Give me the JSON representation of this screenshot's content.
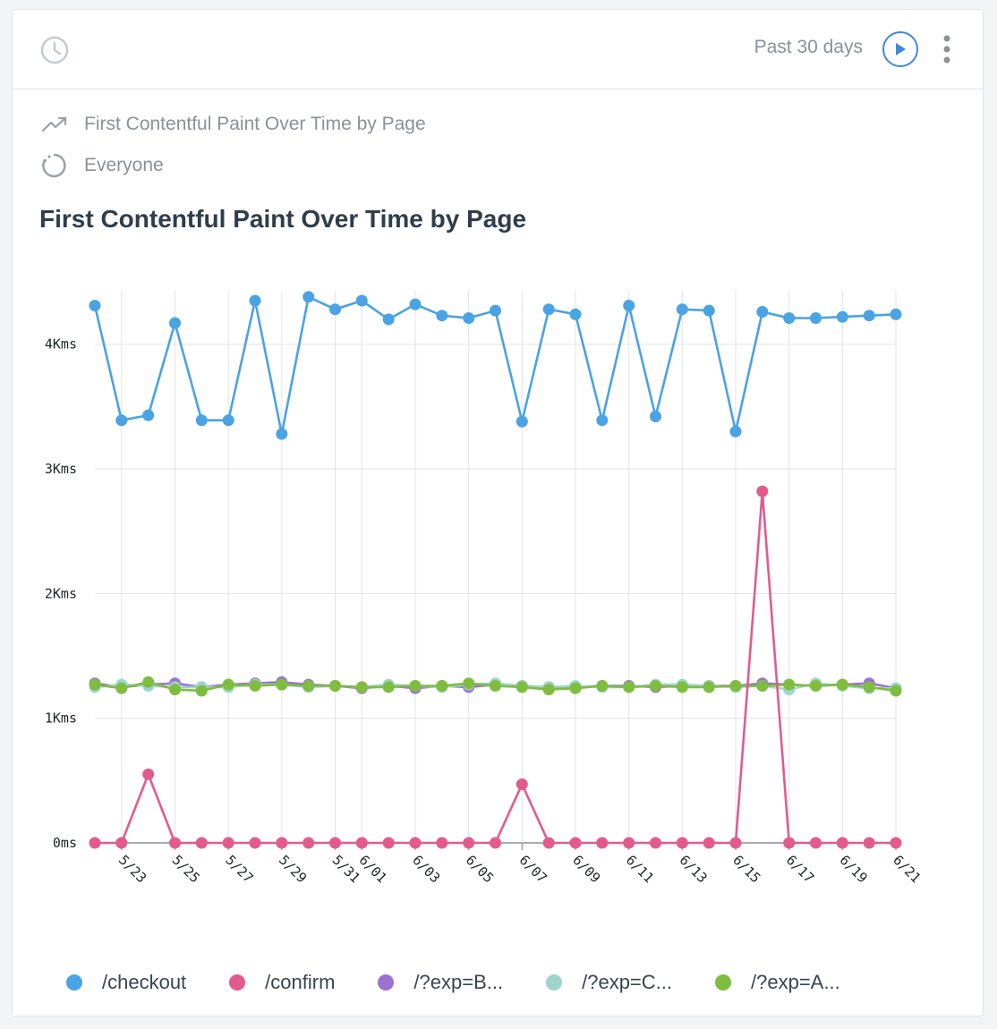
{
  "header": {
    "range_label": "Past 30 days",
    "icons": {
      "clock": "clock-icon",
      "play": "play-icon",
      "menu": "kebab-icon"
    }
  },
  "query": {
    "metric_label": "First Contentful Paint Over Time by Page",
    "metric_icon": "trend-line-icon",
    "segment_label": "Everyone",
    "segment_icon": "dotted-circle-icon"
  },
  "colors": {
    "accent": "#3f88e0",
    "checkout": "#4aa3e3",
    "confirm": "#e35b8e",
    "expB": "#9b72cf",
    "expC": "#9dd5cc",
    "expA": "#7fbd3e"
  },
  "chart_data": {
    "type": "line",
    "title": "First Contentful Paint Over Time by Page",
    "ylim": [
      0,
      4400
    ],
    "y_ticks": [
      0,
      1000,
      2000,
      3000,
      4000
    ],
    "y_tick_labels": [
      "0ms",
      "1Kms",
      "2Kms",
      "3Kms",
      "4Kms"
    ],
    "x": [
      "5/22",
      "5/23",
      "5/24",
      "5/25",
      "5/26",
      "5/27",
      "5/28",
      "5/29",
      "5/30",
      "5/31",
      "6/01",
      "6/02",
      "6/03",
      "6/04",
      "6/05",
      "6/06",
      "6/07",
      "6/08",
      "6/09",
      "6/10",
      "6/11",
      "6/12",
      "6/13",
      "6/14",
      "6/15",
      "6/16",
      "6/17",
      "6/18",
      "6/19",
      "6/20",
      "6/21"
    ],
    "x_tick_labels": [
      "5/23",
      "5/25",
      "5/27",
      "5/29",
      "5/31",
      "6/01",
      "6/03",
      "6/05",
      "6/07",
      "6/09",
      "6/11",
      "6/13",
      "6/15",
      "6/17",
      "6/19",
      "6/21"
    ],
    "grid": true,
    "legend_position": "bottom",
    "series": [
      {
        "name": "/checkout",
        "color": "#4aa3e3",
        "values": [
          4310,
          3390,
          3430,
          4170,
          3390,
          3390,
          4350,
          3280,
          4380,
          4280,
          4350,
          4200,
          4320,
          4230,
          4210,
          4270,
          3380,
          4280,
          4240,
          3390,
          4310,
          3420,
          4280,
          4270,
          3300,
          4260,
          4210,
          4210,
          4220,
          4230,
          4240
        ]
      },
      {
        "name": "/confirm",
        "color": "#e35b8e",
        "values": [
          0,
          0,
          550,
          0,
          0,
          0,
          0,
          0,
          0,
          0,
          0,
          0,
          0,
          0,
          0,
          0,
          470,
          0,
          0,
          0,
          0,
          0,
          0,
          0,
          0,
          2820,
          0,
          0,
          0,
          0,
          0
        ]
      },
      {
        "name": "/?exp=B...",
        "color": "#9b72cf",
        "values": [
          1280,
          1250,
          1270,
          1280,
          1250,
          1270,
          1280,
          1290,
          1270,
          1260,
          1240,
          1260,
          1240,
          1260,
          1250,
          1270,
          1260,
          1250,
          1250,
          1260,
          1260,
          1250,
          1260,
          1260,
          1260,
          1280,
          1270,
          1260,
          1270,
          1280,
          1240
        ]
      },
      {
        "name": "/?exp=C...",
        "color": "#9dd5cc",
        "values": [
          1250,
          1270,
          1260,
          1250,
          1250,
          1250,
          1270,
          1270,
          1250,
          1260,
          1250,
          1270,
          1260,
          1250,
          1270,
          1280,
          1260,
          1250,
          1260,
          1250,
          1250,
          1270,
          1270,
          1260,
          1250,
          1260,
          1230,
          1280,
          1260,
          1240,
          1240
        ]
      },
      {
        "name": "/?exp=A...",
        "color": "#7fbd3e",
        "values": [
          1270,
          1240,
          1290,
          1230,
          1220,
          1270,
          1260,
          1270,
          1260,
          1260,
          1250,
          1250,
          1260,
          1260,
          1280,
          1260,
          1250,
          1230,
          1240,
          1260,
          1250,
          1260,
          1250,
          1250,
          1260,
          1260,
          1270,
          1260,
          1270,
          1250,
          1220
        ]
      }
    ]
  }
}
